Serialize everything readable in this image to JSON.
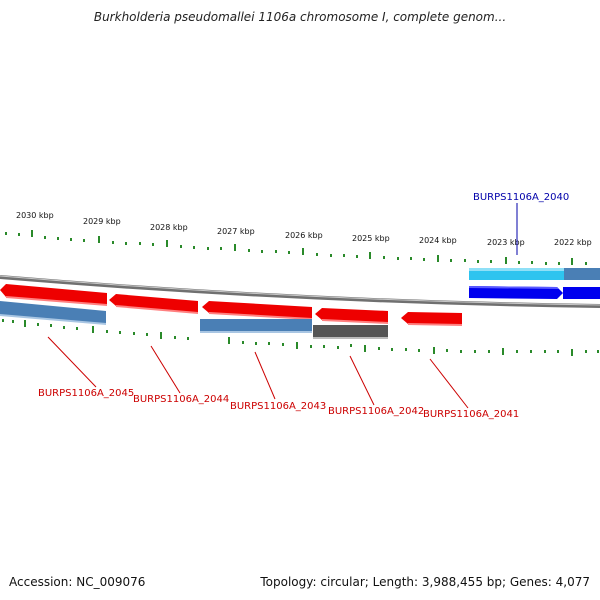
{
  "title": "Burkholderia pseudomallei 1106a chromosome I, complete genom...",
  "footer": {
    "accession": "Accession: NC_009076",
    "summary": "Topology: circular; Length: 3,988,455 bp; Genes: 4,077"
  },
  "scale": {
    "ticks": [
      "2030 kbp",
      "2029 kbp",
      "2028 kbp",
      "2027 kbp",
      "2026 kbp",
      "2025 kbp",
      "2024 kbp",
      "2023 kbp",
      "2022 kbp"
    ]
  },
  "genes": {
    "labels": [
      "BURPS1106A_2040",
      "BURPS1106A_2045",
      "BURPS1106A_2044",
      "BURPS1106A_2043",
      "BURPS1106A_2042",
      "BURPS1106A_2041"
    ]
  },
  "colors": {
    "forward_gene": "#0000ee",
    "reverse_gene": "#ee0000",
    "cds_light_blue": "#2ec4ef",
    "cds_steel": "#4a7fb5",
    "cds_gray": "#555555",
    "tick": "#2a8a2a",
    "label_blue": "#0000aa",
    "label_red": "#cc0000"
  }
}
